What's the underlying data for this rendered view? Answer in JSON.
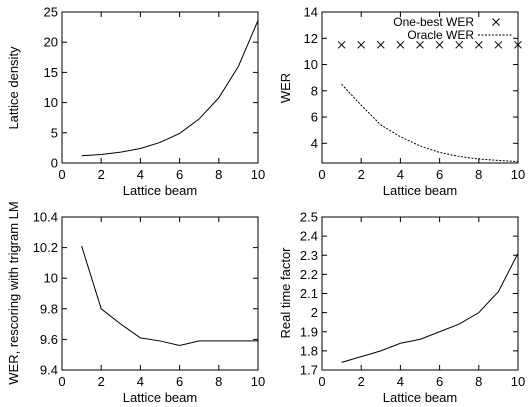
{
  "chart_data": [
    {
      "type": "line",
      "xlabel": "Lattice beam",
      "ylabel": "Lattice density",
      "xlim": [
        0,
        10
      ],
      "ylim": [
        0,
        25
      ],
      "xticks": [
        "0",
        "2",
        "4",
        "6",
        "8",
        "10"
      ],
      "yticks": [
        "0",
        "5",
        "10",
        "15",
        "20",
        "25"
      ],
      "series": [
        {
          "x": [
            1,
            2,
            3,
            4,
            5,
            6,
            7,
            8,
            9,
            10
          ],
          "values": [
            1.2,
            1.4,
            1.8,
            2.4,
            3.4,
            4.9,
            7.3,
            10.8,
            16.0,
            23.6
          ]
        }
      ]
    },
    {
      "type": "line",
      "xlabel": "Lattice beam",
      "ylabel": "WER",
      "xlim": [
        0,
        10
      ],
      "ylim": [
        2.5,
        14
      ],
      "xticks": [
        "0",
        "2",
        "4",
        "6",
        "8",
        "10"
      ],
      "yticks": [
        "4",
        "6",
        "8",
        "10",
        "12",
        "14"
      ],
      "legend": "top-right",
      "series": [
        {
          "name": "One-best WER",
          "style": "points-x",
          "x": [
            1,
            2,
            3,
            4,
            5,
            6,
            7,
            8,
            9,
            10
          ],
          "values": [
            11.5,
            11.5,
            11.5,
            11.5,
            11.5,
            11.5,
            11.5,
            11.5,
            11.5,
            11.5
          ]
        },
        {
          "name": "Oracle WER",
          "style": "dotted",
          "x": [
            1,
            2,
            3,
            4,
            5,
            6,
            7,
            8,
            9,
            10
          ],
          "values": [
            8.5,
            6.9,
            5.4,
            4.5,
            3.8,
            3.3,
            3.0,
            2.8,
            2.7,
            2.6
          ]
        }
      ]
    },
    {
      "type": "line",
      "xlabel": "Lattice beam",
      "ylabel": "WER, rescoring with trigram LM",
      "xlim": [
        0,
        10
      ],
      "ylim": [
        9.4,
        10.4
      ],
      "xticks": [
        "0",
        "2",
        "4",
        "6",
        "8",
        "10"
      ],
      "yticks": [
        "9.4",
        "9.6",
        "9.8",
        "10",
        "10.2",
        "10.4"
      ],
      "series": [
        {
          "x": [
            1,
            2,
            3,
            4,
            5,
            6,
            7,
            8,
            9,
            10
          ],
          "values": [
            10.21,
            9.8,
            9.7,
            9.61,
            9.59,
            9.56,
            9.59,
            9.59,
            9.59,
            9.59
          ]
        }
      ]
    },
    {
      "type": "line",
      "xlabel": "Lattice beam",
      "ylabel": "Real time factor",
      "xlim": [
        0,
        10
      ],
      "ylim": [
        1.7,
        2.5
      ],
      "xticks": [
        "0",
        "2",
        "4",
        "6",
        "8",
        "10"
      ],
      "yticks": [
        "1.7",
        "1.8",
        "1.9",
        "2",
        "2.1",
        "2.2",
        "2.3",
        "2.4",
        "2.5"
      ],
      "series": [
        {
          "x": [
            1,
            2,
            3,
            4,
            5,
            6,
            7,
            8,
            9,
            10
          ],
          "values": [
            1.74,
            1.77,
            1.8,
            1.84,
            1.86,
            1.9,
            1.94,
            2.0,
            2.11,
            2.31
          ]
        }
      ]
    }
  ]
}
